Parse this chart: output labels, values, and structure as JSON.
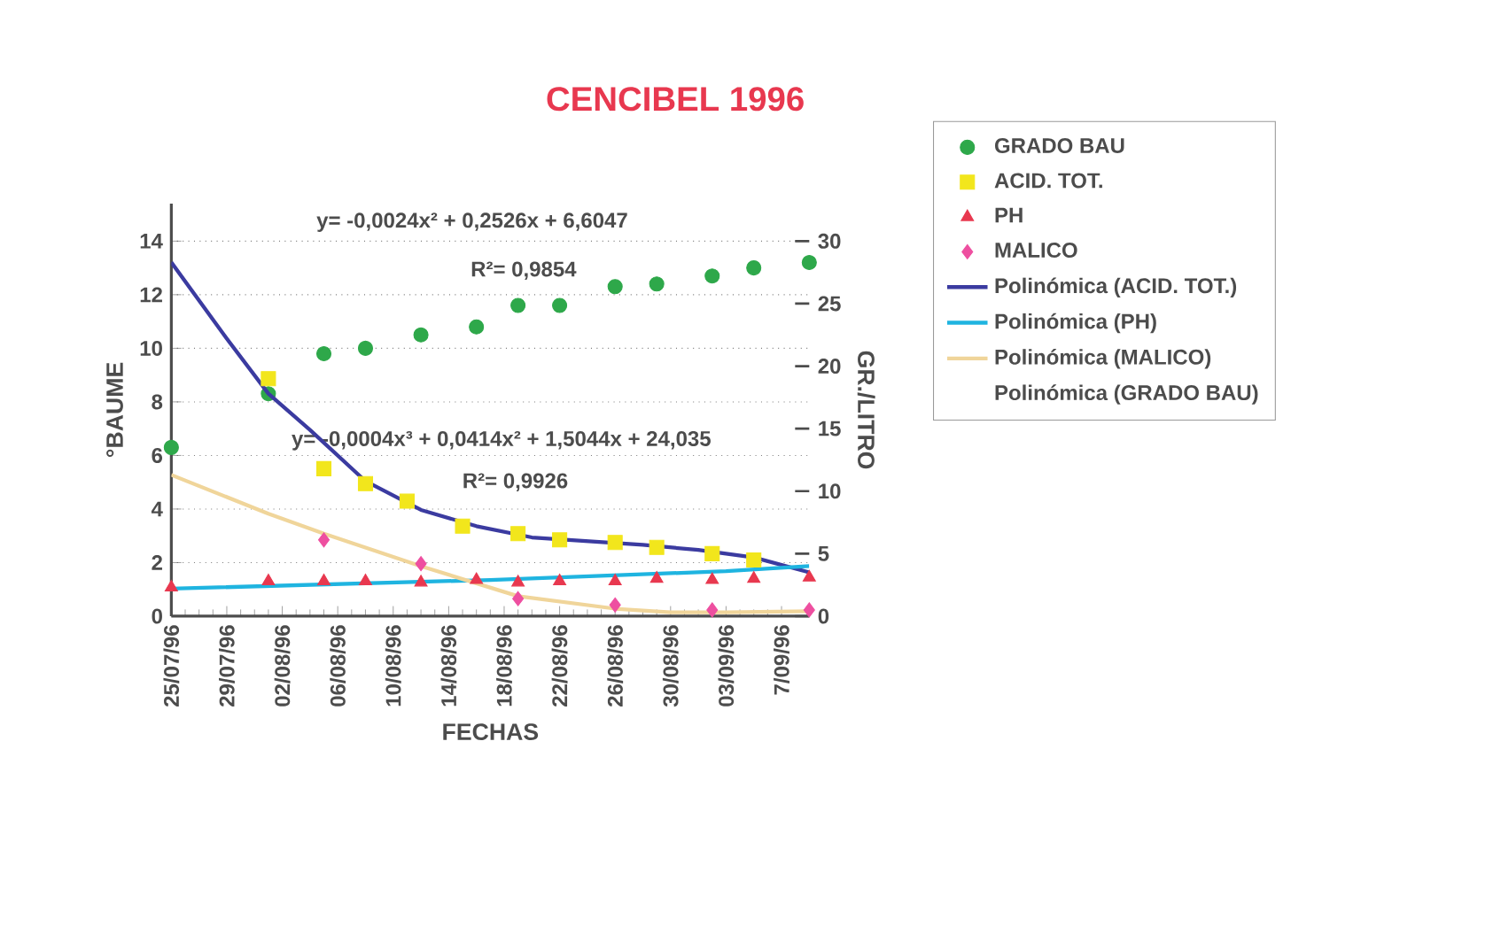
{
  "chart_data": {
    "type": "scatter",
    "title": "CENCIBEL 1996",
    "xlabel": "FECHAS",
    "ylabel": "°BAUME",
    "y2label": "GR./LITRO",
    "xlim": [
      "1996-07-25",
      "1996-09-09"
    ],
    "xticks": [
      {
        "value": "1996-07-25",
        "label": "25/07/96"
      },
      {
        "value": "1996-07-29",
        "label": "29/07/96"
      },
      {
        "value": "1996-08-02",
        "label": "02/08/96"
      },
      {
        "value": "1996-08-06",
        "label": "06/08/96"
      },
      {
        "value": "1996-08-10",
        "label": "10/08/96"
      },
      {
        "value": "1996-08-14",
        "label": "14/08/96"
      },
      {
        "value": "1996-08-18",
        "label": "18/08/96"
      },
      {
        "value": "1996-08-22",
        "label": "22/08/96"
      },
      {
        "value": "1996-08-26",
        "label": "26/08/96"
      },
      {
        "value": "1996-08-30",
        "label": "30/08/96"
      },
      {
        "value": "1996-09-03",
        "label": "03/09/96"
      },
      {
        "value": "1996-09-07",
        "label": "7/09/96"
      }
    ],
    "ylim": [
      0,
      15.4
    ],
    "yticks": [
      0,
      2,
      4,
      6,
      8,
      10,
      12,
      14
    ],
    "y2lim": [
      0,
      33
    ],
    "y2ticks": [
      0,
      5,
      10,
      15,
      20,
      25,
      30
    ],
    "grid": "y",
    "legend": "right",
    "annotations": [
      "y= -0,0024x² + 0,2526x + 6,6047",
      "R²= 0,9854",
      "y= -0,0004x³ + 0,0414x² + 1,5044x + 24,035",
      "R²= 0,9926",
      "Polinómica (GRADO BAU)"
    ],
    "series": [
      {
        "name": "GRADO BAU",
        "marker": "circle",
        "color": "#2ea84a",
        "x": [
          "1996-07-25",
          "1996-08-01",
          "1996-08-05",
          "1996-08-08",
          "1996-08-12",
          "1996-08-16",
          "1996-08-19",
          "1996-08-22",
          "1996-08-26",
          "1996-08-29",
          "1996-09-02",
          "1996-09-05",
          "1996-09-09"
        ],
        "values": [
          6.3,
          8.3,
          9.8,
          10.0,
          10.5,
          10.8,
          11.6,
          11.6,
          12.3,
          12.4,
          12.7,
          13.0,
          13.2
        ]
      },
      {
        "name": "ACID. TOT.",
        "marker": "square",
        "axis": "y2",
        "color": "#f2e61c",
        "x": [
          "1996-08-01",
          "1996-08-05",
          "1996-08-08",
          "1996-08-11",
          "1996-08-15",
          "1996-08-19",
          "1996-08-22",
          "1996-08-26",
          "1996-08-29",
          "1996-09-02",
          "1996-09-05"
        ],
        "values": [
          19.0,
          11.8,
          10.6,
          9.2,
          7.2,
          6.6,
          6.1,
          5.9,
          5.5,
          5.0,
          4.5
        ]
      },
      {
        "name": "PH",
        "marker": "triangle",
        "axis": "y2",
        "color": "#e8384f",
        "x": [
          "1996-07-25",
          "1996-08-01",
          "1996-08-05",
          "1996-08-08",
          "1996-08-12",
          "1996-08-16",
          "1996-08-19",
          "1996-08-22",
          "1996-08-26",
          "1996-08-29",
          "1996-09-02",
          "1996-09-05",
          "1996-09-09"
        ],
        "values": [
          2.3,
          2.8,
          2.8,
          2.8,
          2.7,
          2.9,
          2.7,
          2.8,
          2.8,
          3.0,
          2.9,
          3.0,
          3.1
        ]
      },
      {
        "name": "MALICO",
        "marker": "diamond",
        "axis": "y2",
        "color": "#ee4fa0",
        "x": [
          "1996-08-05",
          "1996-08-12",
          "1996-08-19",
          "1996-08-26",
          "1996-09-02",
          "1996-09-09"
        ],
        "values": [
          6.1,
          4.2,
          1.4,
          0.9,
          0.5,
          0.5
        ]
      },
      {
        "name": "Polinómica (ACID. TOT.)",
        "type": "line",
        "marker": "none",
        "axis": "y2",
        "color": "#3b3ba0",
        "x": [
          "1996-07-25",
          "1996-07-29",
          "1996-08-01",
          "1996-08-04",
          "1996-08-08",
          "1996-08-12",
          "1996-08-16",
          "1996-08-20",
          "1996-08-24",
          "1996-08-28",
          "1996-09-01",
          "1996-09-05",
          "1996-09-09"
        ],
        "values": [
          28.3,
          22.2,
          17.8,
          14.9,
          10.8,
          8.5,
          7.2,
          6.3,
          6.0,
          5.7,
          5.3,
          4.7,
          3.5
        ]
      },
      {
        "name": "Polinómica (PH)",
        "type": "line",
        "marker": "none",
        "axis": "y2",
        "color": "#1fb4e0",
        "x": [
          "1996-07-25",
          "1996-08-17",
          "1996-09-03",
          "1996-09-09"
        ],
        "values": [
          2.2,
          2.9,
          3.6,
          4.0
        ]
      },
      {
        "name": "Polinómica (MALICO)",
        "type": "line",
        "marker": "none",
        "axis": "y2",
        "color": "#f0d59a",
        "x": [
          "1996-07-25",
          "1996-08-01",
          "1996-08-05",
          "1996-08-12",
          "1996-08-19",
          "1996-08-26",
          "1996-08-30",
          "1996-09-03",
          "1996-09-09"
        ],
        "values": [
          11.3,
          8.2,
          6.6,
          4.0,
          1.6,
          0.6,
          0.3,
          0.3,
          0.4
        ]
      }
    ]
  }
}
